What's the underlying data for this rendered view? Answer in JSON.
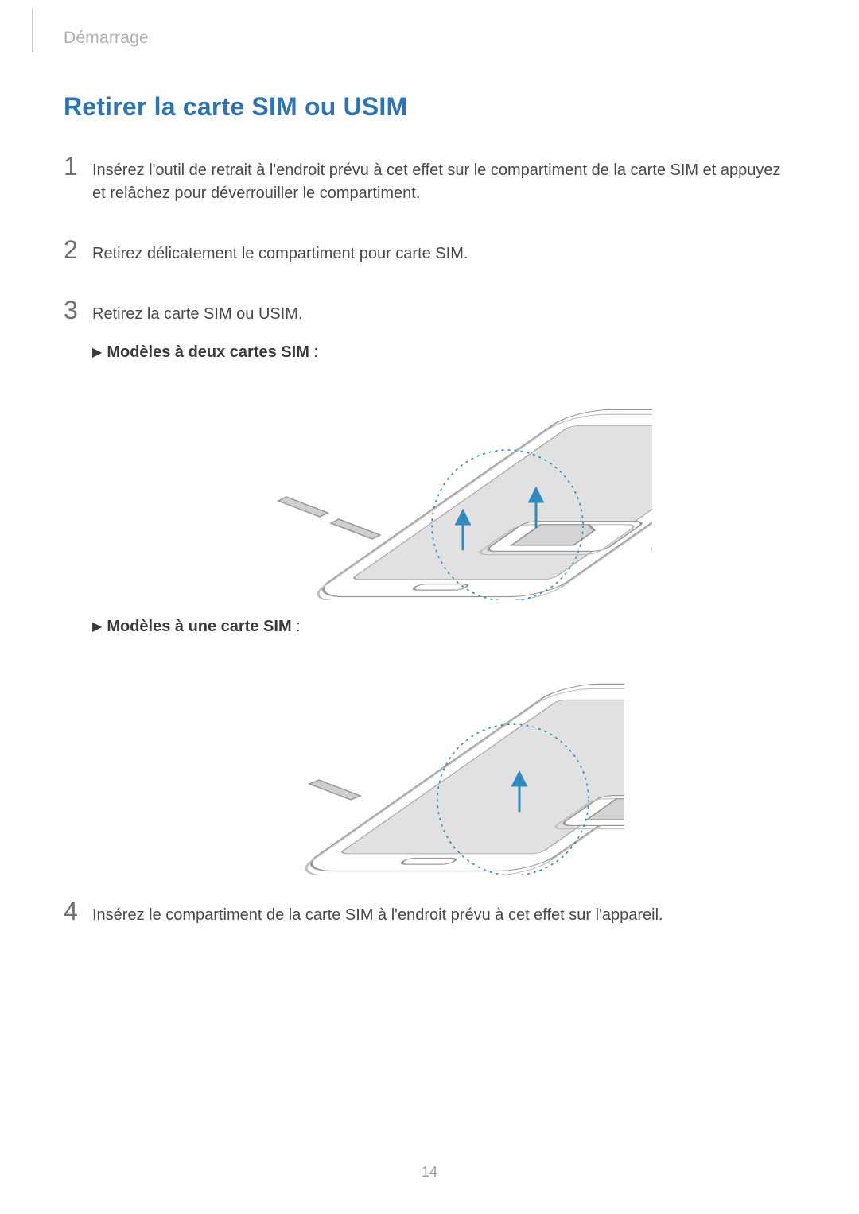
{
  "chapter": "Démarrage",
  "title": "Retirer la carte SIM ou USIM",
  "steps": {
    "s1": {
      "num": "1",
      "text": "Insérez l'outil de retrait à l'endroit prévu à cet effet sur le compartiment de la carte SIM et appuyez et relâchez pour déverrouiller le compartiment."
    },
    "s2": {
      "num": "2",
      "text": "Retirez délicatement le compartiment pour carte SIM."
    },
    "s3": {
      "num": "3",
      "text": "Retirez la carte SIM ou USIM."
    },
    "s4": {
      "num": "4",
      "text": "Insérez le compartiment de la carte SIM à l'endroit prévu à cet effet sur l'appareil."
    }
  },
  "subheads": {
    "dual_prefix": "▶",
    "dual_label": "Modèles à deux cartes SIM",
    "dual_suffix": " :",
    "single_prefix": "▶",
    "single_label": "Modèles à une carte SIM",
    "single_suffix": " :"
  },
  "page_number": "14",
  "figure": {
    "accent": "#2e8bc0",
    "outline": "#8f8f8f",
    "screen_fill": "#d0d0d0",
    "body_fill": "#f7f7f7",
    "body_shade": "#dcdcdc",
    "dash_dasharray": "3 5",
    "dash_width": 1.6,
    "circle_r": 95
  }
}
